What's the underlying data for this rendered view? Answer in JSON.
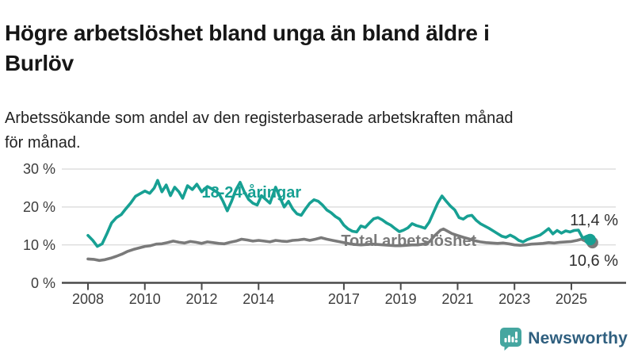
{
  "header": {
    "title": "Högre arbetslöshet bland unga än bland äldre i\nBurlöv",
    "subtitle": "Arbetssökande som andel av den registerbaserade arbetskraften månad\nför månad."
  },
  "chart_data": {
    "type": "line",
    "unit": "%",
    "grid": true,
    "x_axis": {
      "range": [
        2008,
        2025.75
      ],
      "ticks": [
        2008,
        2010,
        2012,
        2014,
        2017,
        2019,
        2021,
        2023,
        2025
      ]
    },
    "y_axis": {
      "range": [
        0,
        30
      ],
      "ticks": [
        {
          "v": 0,
          "label": "0 %"
        },
        {
          "v": 10,
          "label": "10 %"
        },
        {
          "v": 20,
          "label": "20 %"
        },
        {
          "v": 30,
          "label": "30 %"
        }
      ]
    },
    "series": [
      {
        "name": "Total arbetslöshet",
        "color": "#7a7a7a",
        "end_label": "10,6 %",
        "end_value": 10.6,
        "label_anchor": {
          "x": 2016.9,
          "v": 11.05
        },
        "points": [
          [
            2008.0,
            6.3
          ],
          [
            2008.2,
            6.2
          ],
          [
            2008.4,
            5.9
          ],
          [
            2008.6,
            6.1
          ],
          [
            2008.8,
            6.5
          ],
          [
            2009.0,
            7.0
          ],
          [
            2009.2,
            7.6
          ],
          [
            2009.4,
            8.3
          ],
          [
            2009.6,
            8.8
          ],
          [
            2009.8,
            9.2
          ],
          [
            2010.0,
            9.6
          ],
          [
            2010.2,
            9.8
          ],
          [
            2010.4,
            10.2
          ],
          [
            2010.6,
            10.3
          ],
          [
            2010.8,
            10.6
          ],
          [
            2011.0,
            11.0
          ],
          [
            2011.2,
            10.7
          ],
          [
            2011.4,
            10.5
          ],
          [
            2011.6,
            10.9
          ],
          [
            2011.8,
            10.7
          ],
          [
            2012.0,
            10.4
          ],
          [
            2012.2,
            10.8
          ],
          [
            2012.4,
            10.6
          ],
          [
            2012.6,
            10.4
          ],
          [
            2012.8,
            10.3
          ],
          [
            2013.0,
            10.7
          ],
          [
            2013.2,
            11.0
          ],
          [
            2013.4,
            11.5
          ],
          [
            2013.6,
            11.3
          ],
          [
            2013.8,
            11.0
          ],
          [
            2014.0,
            11.2
          ],
          [
            2014.2,
            11.0
          ],
          [
            2014.4,
            10.8
          ],
          [
            2014.6,
            11.2
          ],
          [
            2014.8,
            11.0
          ],
          [
            2015.0,
            10.9
          ],
          [
            2015.2,
            11.2
          ],
          [
            2015.4,
            11.3
          ],
          [
            2015.6,
            11.5
          ],
          [
            2015.8,
            11.2
          ],
          [
            2016.0,
            11.5
          ],
          [
            2016.2,
            11.9
          ],
          [
            2016.4,
            11.5
          ],
          [
            2016.6,
            11.2
          ],
          [
            2016.8,
            10.9
          ],
          [
            2017.0,
            10.6
          ],
          [
            2017.2,
            10.3
          ],
          [
            2017.4,
            10.1
          ],
          [
            2017.6,
            10.0
          ],
          [
            2017.8,
            10.1
          ],
          [
            2018.0,
            10.2
          ],
          [
            2018.2,
            10.1
          ],
          [
            2018.4,
            10.0
          ],
          [
            2018.6,
            9.9
          ],
          [
            2018.8,
            9.8
          ],
          [
            2019.0,
            9.8
          ],
          [
            2019.2,
            9.9
          ],
          [
            2019.4,
            10.0
          ],
          [
            2019.6,
            10.0
          ],
          [
            2019.8,
            10.2
          ],
          [
            2020.0,
            10.8
          ],
          [
            2020.2,
            12.5
          ],
          [
            2020.4,
            13.9
          ],
          [
            2020.5,
            14.2
          ],
          [
            2020.65,
            13.6
          ],
          [
            2020.8,
            13.0
          ],
          [
            2021.0,
            12.5
          ],
          [
            2021.2,
            12.0
          ],
          [
            2021.4,
            11.6
          ],
          [
            2021.6,
            11.1
          ],
          [
            2021.8,
            10.8
          ],
          [
            2022.0,
            10.6
          ],
          [
            2022.2,
            10.5
          ],
          [
            2022.4,
            10.4
          ],
          [
            2022.6,
            10.5
          ],
          [
            2022.8,
            10.3
          ],
          [
            2023.0,
            10.0
          ],
          [
            2023.2,
            9.9
          ],
          [
            2023.4,
            10.0
          ],
          [
            2023.6,
            10.2
          ],
          [
            2023.8,
            10.3
          ],
          [
            2024.0,
            10.4
          ],
          [
            2024.2,
            10.6
          ],
          [
            2024.4,
            10.5
          ],
          [
            2024.6,
            10.7
          ],
          [
            2024.8,
            10.8
          ],
          [
            2025.0,
            10.9
          ],
          [
            2025.2,
            11.2
          ],
          [
            2025.35,
            11.5
          ],
          [
            2025.55,
            10.8
          ],
          [
            2025.7,
            10.6
          ]
        ]
      },
      {
        "name": "18-24-åringar",
        "color": "#17a093",
        "end_label": "11,4 %",
        "end_value": 11.4,
        "label_anchor": {
          "x": 2012.0,
          "v": 23.8
        },
        "points": [
          [
            2008.0,
            12.5
          ],
          [
            2008.17,
            11.2
          ],
          [
            2008.33,
            9.6
          ],
          [
            2008.5,
            10.3
          ],
          [
            2008.67,
            13.0
          ],
          [
            2008.83,
            15.8
          ],
          [
            2009.0,
            17.2
          ],
          [
            2009.17,
            18.0
          ],
          [
            2009.33,
            19.5
          ],
          [
            2009.5,
            21.0
          ],
          [
            2009.67,
            22.8
          ],
          [
            2009.83,
            23.5
          ],
          [
            2010.0,
            24.2
          ],
          [
            2010.17,
            23.6
          ],
          [
            2010.33,
            25.0
          ],
          [
            2010.45,
            27.0
          ],
          [
            2010.6,
            24.0
          ],
          [
            2010.75,
            25.8
          ],
          [
            2010.9,
            23.0
          ],
          [
            2011.05,
            25.2
          ],
          [
            2011.2,
            24.0
          ],
          [
            2011.33,
            22.3
          ],
          [
            2011.5,
            25.6
          ],
          [
            2011.67,
            24.6
          ],
          [
            2011.83,
            26.0
          ],
          [
            2012.0,
            24.0
          ],
          [
            2012.2,
            25.4
          ],
          [
            2012.4,
            24.6
          ],
          [
            2012.6,
            23.6
          ],
          [
            2012.75,
            21.5
          ],
          [
            2012.9,
            19.0
          ],
          [
            2013.05,
            21.5
          ],
          [
            2013.2,
            24.5
          ],
          [
            2013.35,
            26.5
          ],
          [
            2013.5,
            24.0
          ],
          [
            2013.65,
            22.0
          ],
          [
            2013.8,
            21.0
          ],
          [
            2013.95,
            20.5
          ],
          [
            2014.1,
            23.0
          ],
          [
            2014.25,
            22.0
          ],
          [
            2014.4,
            21.0
          ],
          [
            2014.6,
            25.2
          ],
          [
            2014.75,
            22.5
          ],
          [
            2014.9,
            20.0
          ],
          [
            2015.05,
            21.5
          ],
          [
            2015.2,
            19.5
          ],
          [
            2015.35,
            18.2
          ],
          [
            2015.5,
            17.8
          ],
          [
            2015.65,
            19.5
          ],
          [
            2015.8,
            21.0
          ],
          [
            2015.95,
            21.9
          ],
          [
            2016.1,
            21.5
          ],
          [
            2016.25,
            20.5
          ],
          [
            2016.4,
            19.2
          ],
          [
            2016.55,
            18.5
          ],
          [
            2016.7,
            17.5
          ],
          [
            2016.85,
            16.8
          ],
          [
            2017.0,
            15.2
          ],
          [
            2017.15,
            14.2
          ],
          [
            2017.3,
            13.6
          ],
          [
            2017.45,
            13.4
          ],
          [
            2017.6,
            15.0
          ],
          [
            2017.75,
            14.6
          ],
          [
            2017.9,
            15.8
          ],
          [
            2018.05,
            16.9
          ],
          [
            2018.2,
            17.2
          ],
          [
            2018.35,
            16.6
          ],
          [
            2018.5,
            15.8
          ],
          [
            2018.65,
            15.2
          ],
          [
            2018.8,
            14.3
          ],
          [
            2018.95,
            13.5
          ],
          [
            2019.1,
            13.9
          ],
          [
            2019.25,
            14.5
          ],
          [
            2019.4,
            15.6
          ],
          [
            2019.55,
            15.1
          ],
          [
            2019.7,
            14.8
          ],
          [
            2019.85,
            14.4
          ],
          [
            2020.0,
            16.0
          ],
          [
            2020.15,
            18.5
          ],
          [
            2020.3,
            21.0
          ],
          [
            2020.45,
            22.9
          ],
          [
            2020.6,
            21.5
          ],
          [
            2020.75,
            20.2
          ],
          [
            2020.9,
            19.2
          ],
          [
            2021.05,
            17.2
          ],
          [
            2021.2,
            16.8
          ],
          [
            2021.35,
            17.6
          ],
          [
            2021.5,
            17.8
          ],
          [
            2021.65,
            16.5
          ],
          [
            2021.8,
            15.6
          ],
          [
            2021.95,
            15.0
          ],
          [
            2022.1,
            14.4
          ],
          [
            2022.25,
            13.7
          ],
          [
            2022.4,
            13.0
          ],
          [
            2022.55,
            12.3
          ],
          [
            2022.7,
            12.0
          ],
          [
            2022.85,
            12.6
          ],
          [
            2023.0,
            12.0
          ],
          [
            2023.15,
            11.2
          ],
          [
            2023.3,
            10.8
          ],
          [
            2023.45,
            11.4
          ],
          [
            2023.6,
            11.8
          ],
          [
            2023.75,
            12.2
          ],
          [
            2023.9,
            12.6
          ],
          [
            2024.05,
            13.4
          ],
          [
            2024.2,
            14.3
          ],
          [
            2024.35,
            12.9
          ],
          [
            2024.5,
            13.8
          ],
          [
            2024.65,
            13.1
          ],
          [
            2024.8,
            13.7
          ],
          [
            2024.95,
            13.4
          ],
          [
            2025.1,
            13.8
          ],
          [
            2025.25,
            13.9
          ],
          [
            2025.4,
            11.8
          ],
          [
            2025.55,
            12.3
          ],
          [
            2025.66,
            11.4
          ]
        ]
      }
    ],
    "style": {
      "grid_color": "#dcdcdc",
      "axis_color": "#4a4a4a",
      "tick_text_color": "#3d3d3d",
      "end_label_color": "#2e2e2e"
    }
  },
  "footer": {
    "brand": "Newsworthy",
    "icon": "newsworthy-chart-bubble-icon",
    "icon_color": "#45a6a0",
    "brand_color": "#2f5f7f"
  }
}
